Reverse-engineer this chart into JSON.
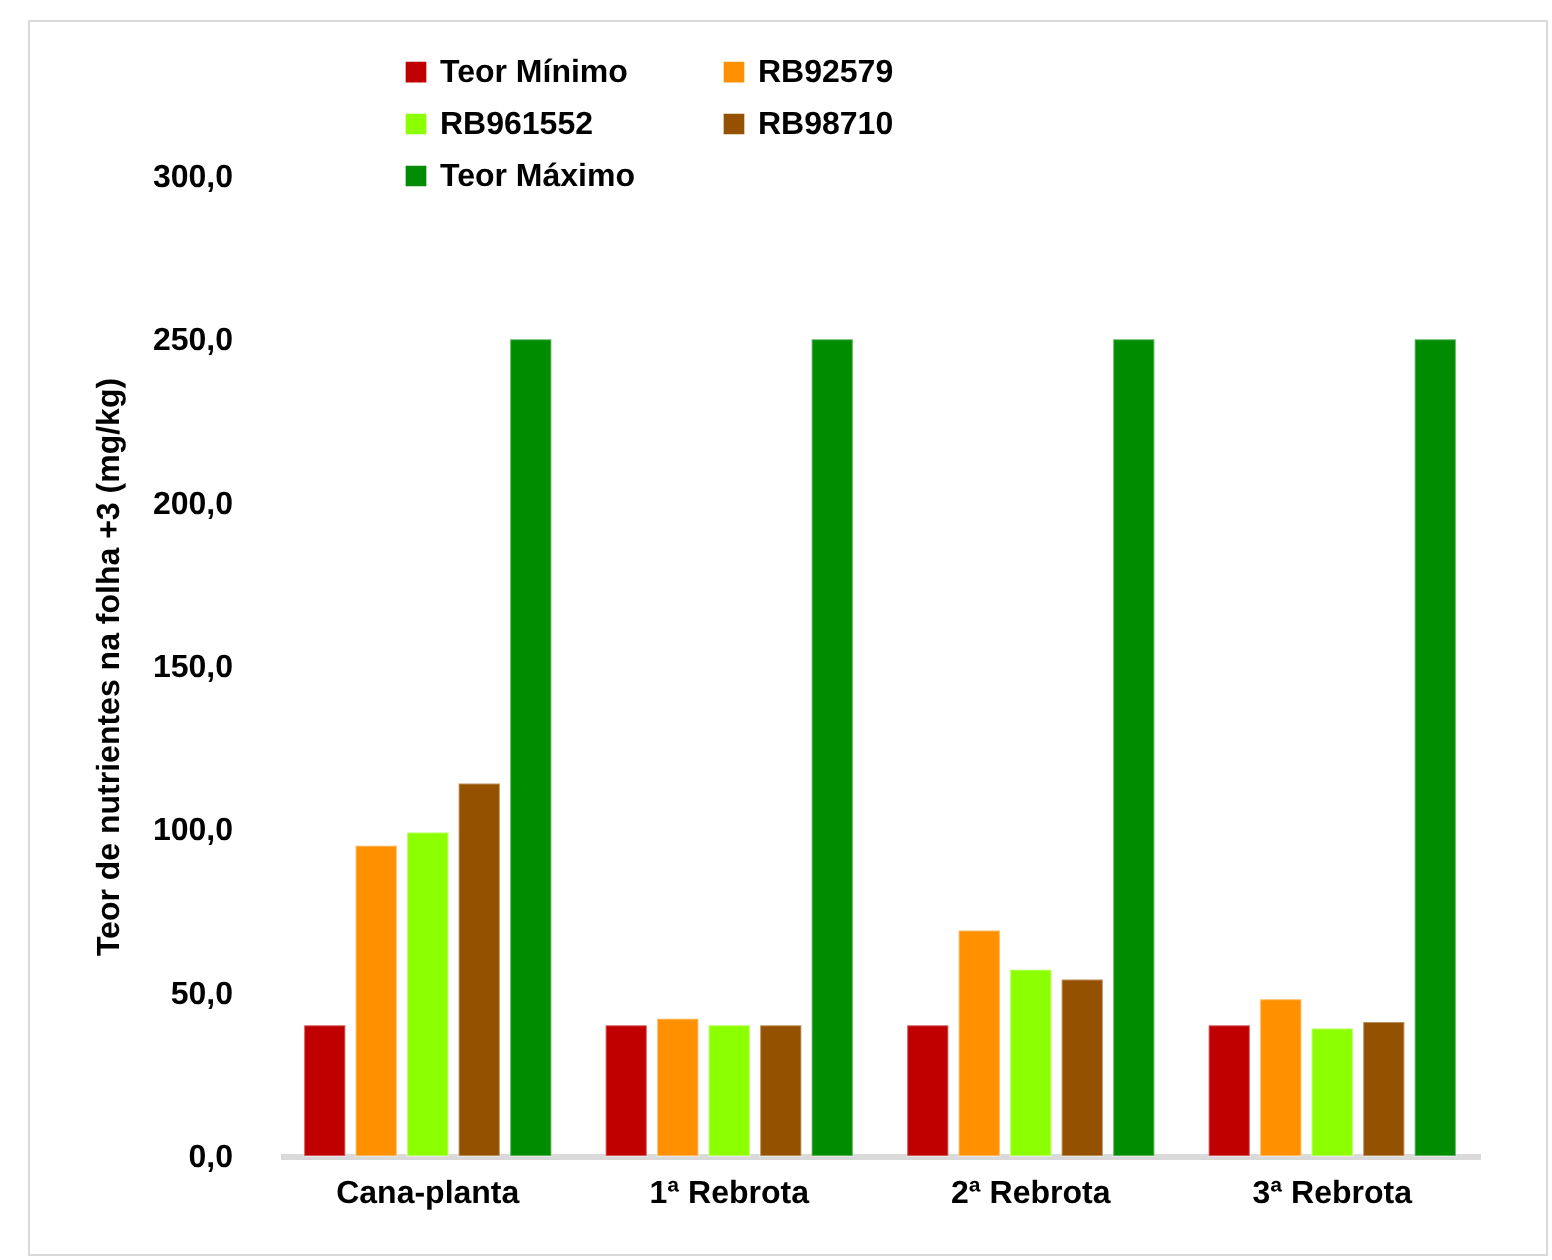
{
  "chart_data": {
    "type": "bar",
    "ylabel": "Teor de nutrientes na folha +3 (mg/kg)",
    "categories": [
      "Cana-planta",
      "1ª Rebrota",
      "2ª Rebrota",
      "3ª Rebrota"
    ],
    "series": [
      {
        "name": "Teor Mínimo",
        "color": "#c00000",
        "values": [
          40,
          40,
          40,
          40
        ]
      },
      {
        "name": "RB92579",
        "color": "#ff9100",
        "values": [
          95,
          42,
          69,
          48
        ]
      },
      {
        "name": "RB961552",
        "color": "#8cff00",
        "values": [
          99,
          40,
          57,
          39
        ]
      },
      {
        "name": "RB98710",
        "color": "#945200",
        "values": [
          114,
          40,
          54,
          41
        ]
      },
      {
        "name": "Teor Máximo",
        "color": "#008c00",
        "values": [
          250,
          250,
          250,
          250
        ]
      }
    ],
    "ylim": [
      0,
      300
    ],
    "yticks": [
      {
        "value": 0,
        "label": "0,0"
      },
      {
        "value": 50,
        "label": "50,0"
      },
      {
        "value": 100,
        "label": "100,0"
      },
      {
        "value": 150,
        "label": "150,0"
      },
      {
        "value": 200,
        "label": "200,0"
      },
      {
        "value": 250,
        "label": "250,0"
      },
      {
        "value": 300,
        "label": "300,0"
      }
    ],
    "grid": false,
    "legend": "top left"
  }
}
